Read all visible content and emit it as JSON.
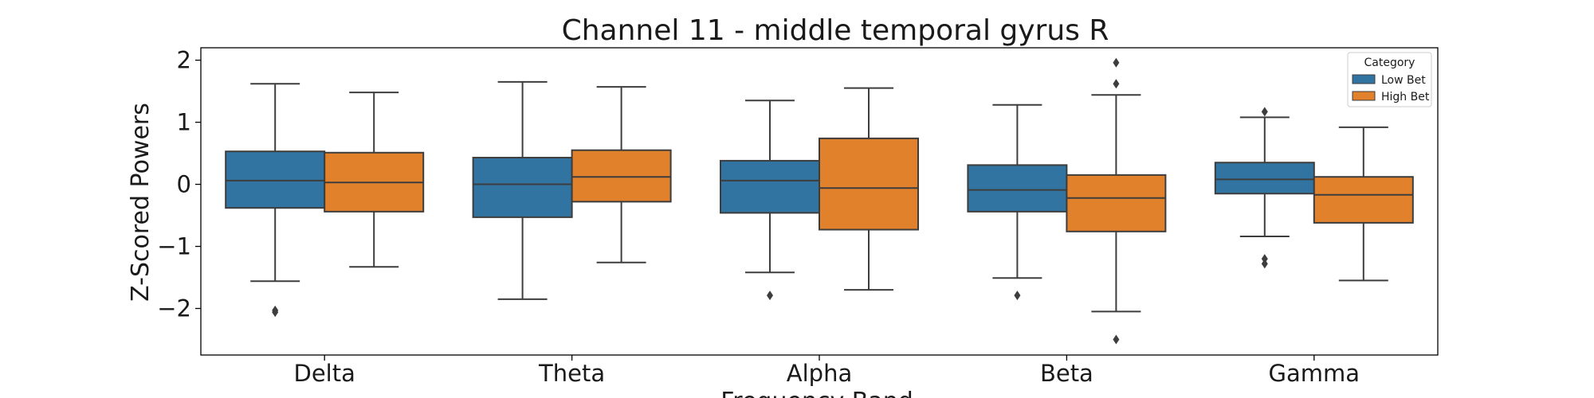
{
  "chart_data": {
    "type": "box",
    "title": "Channel 11 - middle temporal gyrus R",
    "xlabel": "Frequency Band",
    "ylabel": "Z-Scored Powers",
    "categories": [
      "Delta",
      "Theta",
      "Alpha",
      "Beta",
      "Gamma"
    ],
    "ylim": [
      -2.75,
      2.2
    ],
    "yticks": [
      2,
      1,
      0,
      -1,
      -2
    ],
    "ytick_labels": [
      "2",
      "1",
      "0",
      "−1",
      "−2"
    ],
    "grid": false,
    "legend": {
      "title": "Category",
      "position": "top-right"
    },
    "series": [
      {
        "name": "Low Bet",
        "color": "#3274a1",
        "boxes": [
          {
            "whislo": -1.56,
            "q1": -0.38,
            "med": 0.06,
            "q3": 0.53,
            "whishi": 1.62,
            "fliers": [
              -2.03,
              -2.06
            ]
          },
          {
            "whislo": -1.85,
            "q1": -0.53,
            "med": 0.0,
            "q3": 0.43,
            "whishi": 1.65,
            "fliers": []
          },
          {
            "whislo": -1.42,
            "q1": -0.46,
            "med": 0.06,
            "q3": 0.38,
            "whishi": 1.35,
            "fliers": [
              -1.79
            ]
          },
          {
            "whislo": -1.51,
            "q1": -0.44,
            "med": -0.09,
            "q3": 0.31,
            "whishi": 1.28,
            "fliers": [
              -1.79
            ]
          },
          {
            "whislo": -0.84,
            "q1": -0.15,
            "med": 0.08,
            "q3": 0.35,
            "whishi": 1.08,
            "fliers": [
              1.17,
              -1.2,
              -1.28
            ]
          }
        ]
      },
      {
        "name": "High Bet",
        "color": "#e1812c",
        "boxes": [
          {
            "whislo": -1.33,
            "q1": -0.44,
            "med": 0.03,
            "q3": 0.51,
            "whishi": 1.48,
            "fliers": []
          },
          {
            "whislo": -1.26,
            "q1": -0.28,
            "med": 0.12,
            "q3": 0.55,
            "whishi": 1.57,
            "fliers": []
          },
          {
            "whislo": -1.7,
            "q1": -0.73,
            "med": -0.06,
            "q3": 0.74,
            "whishi": 1.55,
            "fliers": []
          },
          {
            "whislo": -2.05,
            "q1": -0.76,
            "med": -0.22,
            "q3": 0.15,
            "whishi": 1.44,
            "fliers": [
              1.96,
              1.62,
              -2.5
            ]
          },
          {
            "whislo": -1.55,
            "q1": -0.62,
            "med": -0.17,
            "q3": 0.12,
            "whishi": 0.92,
            "fliers": []
          }
        ]
      }
    ]
  }
}
